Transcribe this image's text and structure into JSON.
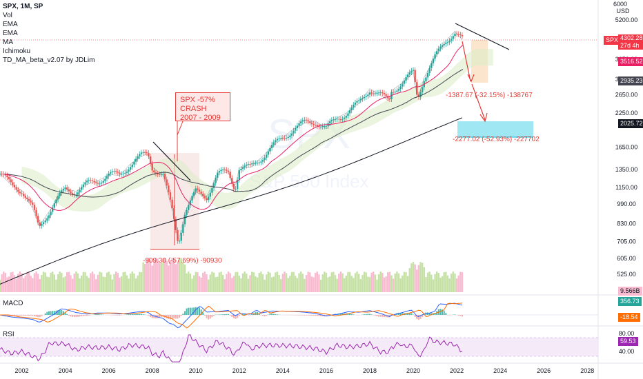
{
  "legend": {
    "symbol": "SPX, 1M, SP",
    "indicators": [
      "Vol",
      "EMA",
      "EMA",
      "MA",
      "Ichimoku",
      "TD_MA_beta_v2.07 by JDLim"
    ]
  },
  "panes": {
    "macd": "MACD",
    "rsi": "RSI"
  },
  "price_axis": {
    "currency_top": "6000",
    "currency": "USD",
    "ticks": [
      "5200.00",
      "3650.00",
      "3050.00",
      "2650.00",
      "2250.00",
      "1650.00",
      "1350.00",
      "1150.00",
      "990.00",
      "830.00",
      "705.00",
      "605.00",
      "525.00"
    ],
    "tick_values": [
      5200,
      3650,
      3050,
      2650,
      2250,
      1650,
      1350,
      1150,
      990,
      830,
      705,
      605,
      525
    ]
  },
  "price_tags": {
    "spx_label": "SPX",
    "spx_price": "4302.28",
    "spx_countdown": "27d 4h",
    "ema1": "3516.52",
    "ema2": "2935.23",
    "ma": "2025.72",
    "volume": "9.566B",
    "macd1": "356.73",
    "macd2": "-18.54",
    "rsi_value": "59.53"
  },
  "rsi_axis": [
    "80.00",
    "40.00"
  ],
  "time_axis": [
    "2002",
    "2004",
    "2006",
    "2008",
    "2010",
    "2012",
    "2014",
    "2016",
    "2018",
    "2020",
    "2022",
    "2024",
    "2026",
    "2028"
  ],
  "annotations": {
    "crash_title": "SPX -57% CRASH",
    "crash_years": "2007 - 2009",
    "crash_measure": "-909.30 (-57.69%) -90930",
    "proj1": "-1387.67 (-32.15%) -138767",
    "proj2": "-2277.02 (-52.93%) -227702"
  },
  "watermark": {
    "big": "SPX",
    "sub": "S&P 500 Index"
  },
  "colors": {
    "up": "#26a69a",
    "down": "#ef5350",
    "ema_fast": "#e91e63",
    "ema_slow": "#434651",
    "ma_long": "#131722",
    "macd_line": "#2962ff",
    "signal_line": "#ff6d00",
    "rsi_line": "#9c27b0",
    "vol_up": "#c5e1a5",
    "vol_down": "#f8bbd0",
    "cloud": "#dcedc8",
    "ma_tag": "#131722",
    "spx_tag": "#f23645"
  },
  "chart_data": {
    "type": "line",
    "title": "SPX, 1M, SP",
    "x_label": "",
    "y_label": "USD",
    "y_scale": "log",
    "series": [
      {
        "name": "SPX",
        "x": [
          2001,
          2001.5,
          2002,
          2002.5,
          2002.8,
          2003,
          2003.5,
          2004,
          2004.5,
          2005,
          2005.5,
          2006,
          2006.5,
          2007,
          2007.5,
          2007.8,
          2008,
          2008.5,
          2008.9,
          2009.2,
          2009.5,
          2010,
          2010.5,
          2011,
          2011.5,
          2011.8,
          2012,
          2012.5,
          2013,
          2013.5,
          2014,
          2014.5,
          2015,
          2015.5,
          2016,
          2016.5,
          2017,
          2017.5,
          2018,
          2018.9,
          2019,
          2019.5,
          2020,
          2020.2,
          2020.5,
          2021,
          2021.5,
          2021.9,
          2022.1,
          2022.3
        ],
        "y": [
          1300,
          1180,
          1120,
          950,
          800,
          860,
          990,
          1130,
          1110,
          1180,
          1220,
          1290,
          1280,
          1420,
          1520,
          1560,
          1380,
          1280,
          950,
          700,
          920,
          1100,
          1060,
          1290,
          1320,
          1140,
          1370,
          1370,
          1500,
          1650,
          1800,
          1950,
          2050,
          2090,
          1950,
          2150,
          2270,
          2450,
          2800,
          2500,
          2750,
          2950,
          3230,
          2550,
          3100,
          3700,
          4300,
          4700,
          4500,
          4300
        ]
      }
    ],
    "price_ticks": [
      5200,
      3650,
      3050,
      2650,
      2250,
      1650,
      1350,
      1150,
      990,
      830,
      705,
      605,
      525
    ],
    "crash_2007_2009": {
      "from": 1576,
      "to": 667,
      "change": -909.3,
      "percent": -57.69
    },
    "projection_1": {
      "change": -1387.67,
      "percent": -32.15
    },
    "projection_2": {
      "change": -2277.02,
      "percent": -52.93
    },
    "current_price": 4302.28
  }
}
